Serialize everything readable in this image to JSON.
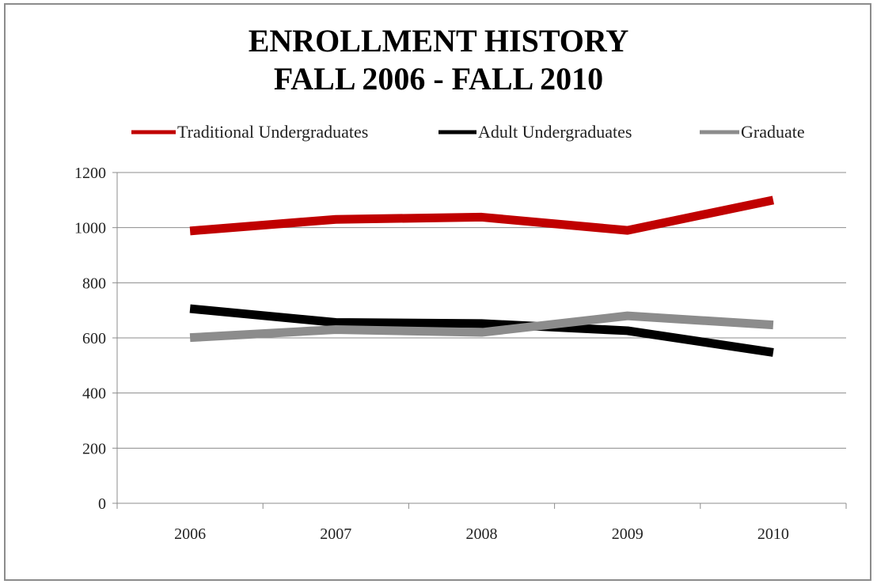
{
  "chart_data": {
    "type": "line",
    "title_lines": [
      "ENROLLMENT HISTORY",
      "FALL 2006 - FALL 2010"
    ],
    "categories": [
      "2006",
      "2007",
      "2008",
      "2009",
      "2010"
    ],
    "yticks": [
      "0",
      "200",
      "400",
      "600",
      "800",
      "1000",
      "1200"
    ],
    "ylim": [
      0,
      1200
    ],
    "ystep": 200,
    "grid": "horizontal",
    "legend_position": "top",
    "series": [
      {
        "name": "Traditional Undergraduates",
        "color": "#c00000",
        "values": [
          988,
          1030,
          1038,
          990,
          1100
        ]
      },
      {
        "name": "Adult Undergraduates",
        "color": "#000000",
        "values": [
          706,
          656,
          652,
          626,
          547
        ]
      },
      {
        "name": "Graduate",
        "color": "#8c8c8c",
        "values": [
          601,
          630,
          620,
          680,
          647
        ]
      }
    ]
  }
}
